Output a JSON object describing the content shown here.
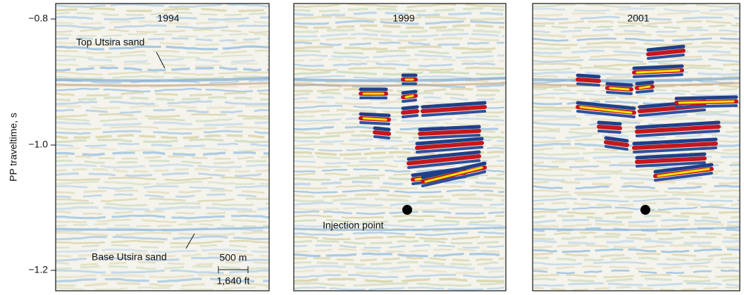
{
  "axis": {
    "label": "PP traveltime, s",
    "ticks": [
      "−0.8",
      "−1.0",
      "−1.2"
    ]
  },
  "panels": [
    {
      "title": "1994",
      "annotations": [
        "Top Utsira sand",
        "Base Utsira sand"
      ],
      "scale_bar": [
        "500 m",
        "1,640 ft"
      ]
    },
    {
      "title": "1999",
      "annotations": [
        "Injection point"
      ]
    },
    {
      "title": "2001"
    }
  ]
}
